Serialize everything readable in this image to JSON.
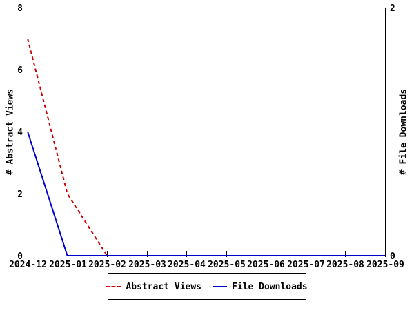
{
  "chart_data": {
    "type": "line",
    "title": "",
    "x_labels": [
      "2024-12",
      "2025-01",
      "2025-02",
      "2025-03",
      "2025-04",
      "2025-05",
      "2025-06",
      "2025-07",
      "2025-08",
      "2025-09"
    ],
    "series": [
      {
        "name": "Abstract Views",
        "axis": "left",
        "color": "#cc0000",
        "style": "dashed",
        "values": [
          7,
          2,
          0,
          0,
          0,
          0,
          0,
          0,
          0,
          0
        ]
      },
      {
        "name": "File Downloads",
        "axis": "right",
        "color": "#0000cc",
        "style": "solid",
        "values": [
          1,
          0,
          0,
          0,
          0,
          0,
          0,
          0,
          0,
          0
        ]
      }
    ],
    "left_axis": {
      "label": "# Abstract Views",
      "min": 0,
      "max": 8,
      "ticks": [
        0,
        2,
        4,
        6,
        8
      ]
    },
    "right_axis": {
      "label": "# File Downloads",
      "min": 0,
      "max": 2,
      "ticks": [
        0,
        2
      ]
    },
    "legend_position": "bottom",
    "grid": false,
    "axis_color": "#000000",
    "text_color": "#000000",
    "background": "#ffffff"
  }
}
